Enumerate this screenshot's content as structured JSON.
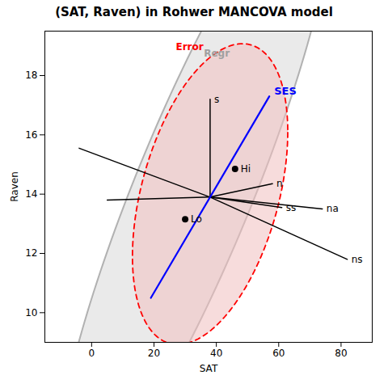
{
  "chart_data": {
    "type": "he_plot",
    "title": "(SAT, Raven) in Rohwer MANCOVA model",
    "xlabel": "SAT",
    "ylabel": "Raven",
    "xlim": [
      -15,
      90
    ],
    "ylim": [
      9.0,
      19.5
    ],
    "xticks": [
      0,
      20,
      40,
      60,
      80
    ],
    "yticks": [
      10,
      12,
      14,
      16,
      18
    ],
    "grid": false,
    "ellipses": [
      {
        "name": "Regr",
        "cx": 33,
        "cy": 14.2,
        "width": 90,
        "height": 9.5,
        "angle": 12,
        "color": "#A0A0A0",
        "fill": "#D8D8D8",
        "line_style": "solid",
        "label_pos": [
          36,
          18.65
        ]
      },
      {
        "name": "Error",
        "cx": 38,
        "cy": 14.0,
        "width": 50,
        "height": 9.2,
        "angle": 5,
        "color": "#FF0000",
        "fill": "#F0C0C0",
        "line_style": "dashed",
        "label_pos": [
          27,
          18.85
        ]
      }
    ],
    "vectors": [
      {
        "label": "s",
        "start": [
          38,
          13.9
        ],
        "end": [
          38,
          17.2
        ]
      },
      {
        "label": "n",
        "start": [
          38,
          13.9
        ],
        "end": [
          58,
          14.35
        ]
      },
      {
        "label": "ss",
        "start": [
          38,
          13.9
        ],
        "end": [
          61,
          13.55
        ]
      },
      {
        "label": "na",
        "start": [
          38,
          13.9
        ],
        "end": [
          74,
          13.5
        ]
      },
      {
        "label": "ns",
        "start": [
          38,
          13.9
        ],
        "end": [
          82,
          11.8
        ]
      },
      {
        "start": [
          38,
          13.9
        ],
        "end": [
          5,
          13.8
        ]
      },
      {
        "start": [
          38,
          13.9
        ],
        "end": [
          -4,
          15.55
        ]
      }
    ],
    "ses_vector": {
      "label": "SES",
      "start": [
        19,
        10.5
      ],
      "end": [
        57,
        17.3
      ],
      "color": "#0000FF"
    },
    "points": [
      {
        "label": "Hi",
        "x": 46,
        "y": 14.85
      },
      {
        "label": "Lo",
        "x": 30,
        "y": 13.15
      }
    ],
    "marker": "circle"
  }
}
